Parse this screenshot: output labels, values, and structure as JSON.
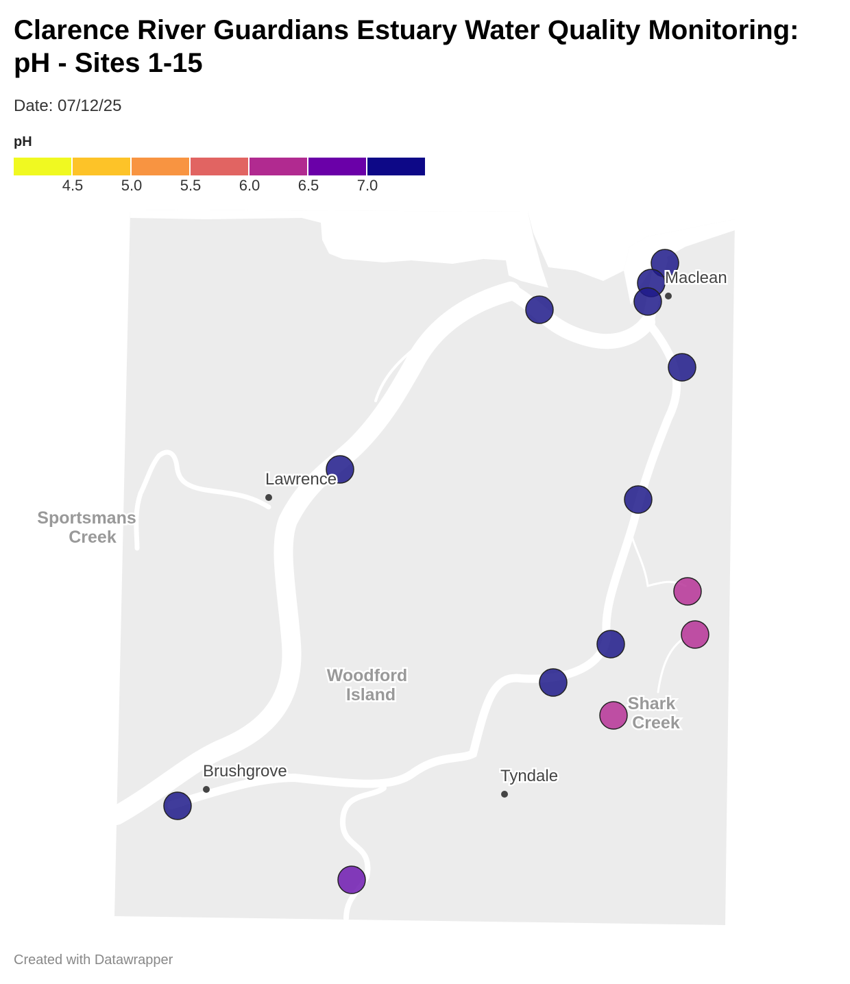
{
  "title": "Clarence River Guardians Estuary Water Quality Monitoring: pH - Sites 1-15",
  "subtitle": "Date: 07/12/25",
  "legend": {
    "title": "pH",
    "colors": [
      "#f0f921",
      "#fdc328",
      "#f89441",
      "#e16462",
      "#b12a90",
      "#6a00a8",
      "#0d0887"
    ],
    "ticks": [
      "4.5",
      "5.0",
      "5.5",
      "6.0",
      "6.5",
      "7.0"
    ]
  },
  "map": {
    "places": [
      {
        "name": "Maclean"
      },
      {
        "name": "Lawrence"
      },
      {
        "name": "Brushgrove"
      },
      {
        "name": "Tyndale"
      }
    ],
    "areas": [
      {
        "lines": [
          "Sportsmans",
          "Creek"
        ]
      },
      {
        "lines": [
          "Woodford",
          "Island"
        ]
      },
      {
        "lines": [
          "Shark",
          "Creek"
        ]
      }
    ],
    "sites": [
      {
        "ph_band": "7.0+",
        "color": "#1f1a8a"
      },
      {
        "ph_band": "7.0+",
        "color": "#1f1a8a"
      },
      {
        "ph_band": "7.0+",
        "color": "#1f1a8a"
      },
      {
        "ph_band": "7.0+",
        "color": "#1f1a8a"
      },
      {
        "ph_band": "7.0+",
        "color": "#1f1a8a"
      },
      {
        "ph_band": "7.0+",
        "color": "#1f1a8a"
      },
      {
        "ph_band": "7.0+",
        "color": "#1f1a8a"
      },
      {
        "ph_band": "6.0-6.5",
        "color": "#b63296"
      },
      {
        "ph_band": "6.0-6.5",
        "color": "#b63296"
      },
      {
        "ph_band": "7.0+",
        "color": "#1f1a8a"
      },
      {
        "ph_band": "7.0+",
        "color": "#1f1a8a"
      },
      {
        "ph_band": "6.0-6.5",
        "color": "#b63296"
      },
      {
        "ph_band": "7.0+",
        "color": "#1f1a8a"
      },
      {
        "ph_band": "6.5-7.0",
        "color": "#6e1ab0"
      },
      {
        "ph_band": "7.0+",
        "color": "#1f1a8a"
      }
    ]
  },
  "footer": "Created with Datawrapper"
}
